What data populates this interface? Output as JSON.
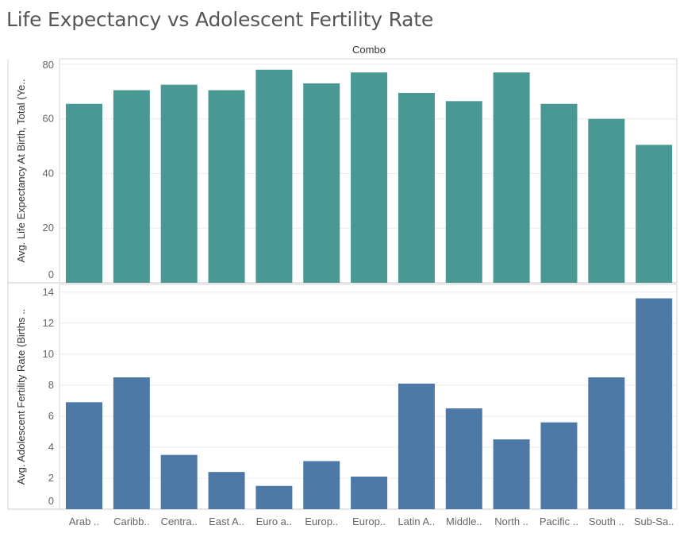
{
  "chart_data": {
    "type": "bar",
    "title": "Life Expectancy vs Adolescent Fertility Rate",
    "subtitle": "Combo",
    "categories": [
      "Arab ..",
      "Caribb..",
      "Centra..",
      "East A..",
      "Euro a..",
      "Europ..",
      "Europ..",
      "Latin A..",
      "Middle..",
      "North ..",
      "Pacific ..",
      "South ..",
      "Sub-Sa.."
    ],
    "panels": [
      {
        "name": "life",
        "ylabel": "Avg. Life Expectancy At Birth, Total (Ye..",
        "ylim": [
          0,
          82
        ],
        "yticks": [
          0,
          20,
          40,
          60,
          80
        ],
        "color": "#499894",
        "values": [
          65.5,
          70.5,
          72.5,
          70.5,
          78,
          73,
          77,
          69.5,
          66.5,
          77,
          65.5,
          60,
          50.5
        ]
      },
      {
        "name": "fertility",
        "ylabel": "Avg. Adolescent Fertility Rate (Births ..",
        "ylim": [
          0,
          14.5
        ],
        "yticks": [
          0,
          2,
          4,
          6,
          8,
          10,
          12,
          14
        ],
        "color": "#4E79A7",
        "values": [
          6.9,
          8.5,
          3.5,
          2.4,
          1.5,
          3.1,
          2.1,
          8.1,
          6.5,
          4.5,
          5.6,
          8.5,
          13.6
        ]
      }
    ]
  }
}
